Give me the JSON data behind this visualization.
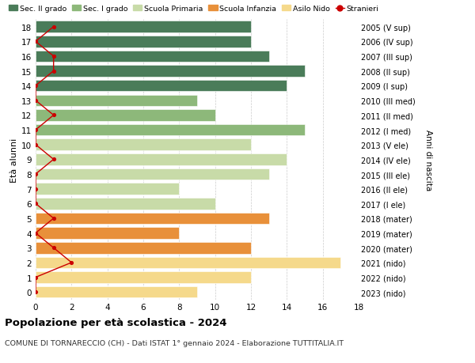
{
  "ages": [
    0,
    1,
    2,
    3,
    4,
    5,
    6,
    7,
    8,
    9,
    10,
    11,
    12,
    13,
    14,
    15,
    16,
    17,
    18
  ],
  "right_labels": [
    "2023 (nido)",
    "2022 (nido)",
    "2021 (nido)",
    "2020 (mater)",
    "2019 (mater)",
    "2018 (mater)",
    "2017 (I ele)",
    "2016 (II ele)",
    "2015 (III ele)",
    "2014 (IV ele)",
    "2013 (V ele)",
    "2012 (I med)",
    "2011 (II med)",
    "2010 (III med)",
    "2009 (I sup)",
    "2008 (II sup)",
    "2007 (III sup)",
    "2006 (IV sup)",
    "2005 (V sup)"
  ],
  "bar_values": [
    9,
    12,
    17,
    12,
    8,
    13,
    10,
    8,
    13,
    14,
    12,
    15,
    10,
    9,
    14,
    15,
    13,
    12,
    12
  ],
  "bar_colors": [
    "#f5d98b",
    "#f5d98b",
    "#f5d98b",
    "#e8903a",
    "#e8903a",
    "#e8903a",
    "#c8dba8",
    "#c8dba8",
    "#c8dba8",
    "#c8dba8",
    "#c8dba8",
    "#8db87a",
    "#8db87a",
    "#8db87a",
    "#4a7c59",
    "#4a7c59",
    "#4a7c59",
    "#4a7c59",
    "#4a7c59"
  ],
  "stranieri_values": [
    0,
    0,
    2,
    1,
    0,
    1,
    0,
    0,
    0,
    1,
    0,
    0,
    1,
    0,
    0,
    1,
    1,
    0,
    1
  ],
  "legend_labels": [
    "Sec. II grado",
    "Sec. I grado",
    "Scuola Primaria",
    "Scuola Infanzia",
    "Asilo Nido",
    "Stranieri"
  ],
  "legend_colors": [
    "#4a7c59",
    "#8db87a",
    "#c8dba8",
    "#e8903a",
    "#f5d98b",
    "#cc0000"
  ],
  "ylabel_left": "Età alunni",
  "ylabel_right": "Anni di nascita",
  "title": "Popolazione per età scolastica - 2024",
  "subtitle": "COMUNE DI TORNARECCIO (CH) - Dati ISTAT 1° gennaio 2024 - Elaborazione TUTTITALIA.IT",
  "xlim": [
    0,
    18
  ],
  "bg_color": "#ffffff",
  "grid_color": "#cccccc"
}
